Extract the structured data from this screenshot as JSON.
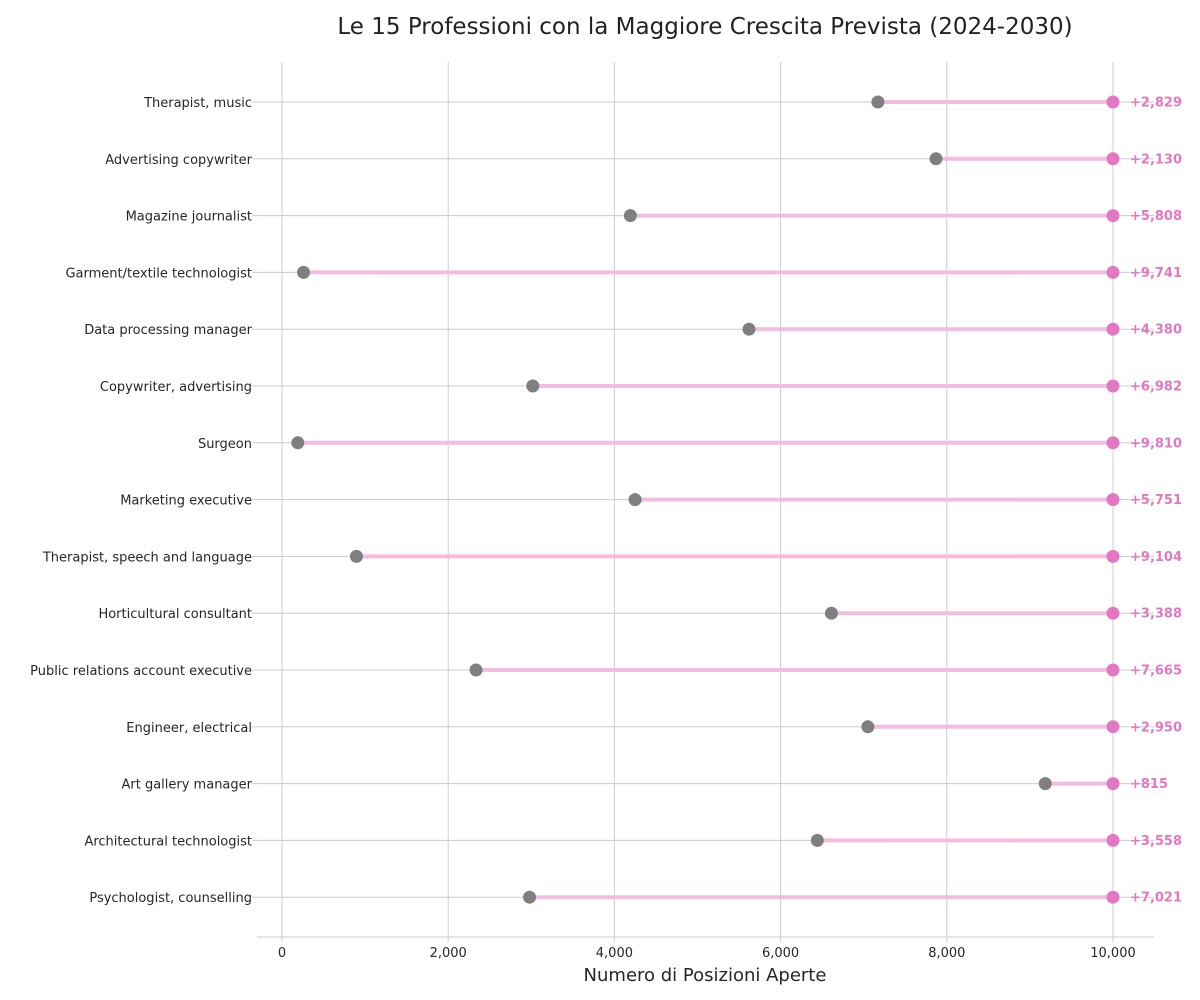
{
  "chart_data": {
    "type": "dumbbell",
    "title": "Le 15 Professioni con la Maggiore Crescita Prevista (2024-2030)",
    "xlabel": "Numero di Posizioni Aperte",
    "ylabel": "",
    "xlim": [
      -300,
      10500
    ],
    "xticks": [
      0,
      2000,
      4000,
      6000,
      8000,
      10000
    ],
    "xtick_labels": [
      "0",
      "2,000",
      "4,000",
      "6,000",
      "8,000",
      "10,000"
    ],
    "grid": "both",
    "legend": "none",
    "colors": {
      "start_point": "#7f7f7f",
      "end_point": "#e377c2",
      "connector": "#f2bde0",
      "growth_label": "#e377c2",
      "grid": "#cccccc",
      "axis": "#cccccc"
    },
    "categories": [
      "Therapist, music",
      "Advertising copywriter",
      "Magazine journalist",
      "Garment/textile technologist",
      "Data processing manager",
      "Copywriter, advertising",
      "Surgeon",
      "Marketing executive",
      "Therapist, speech and language",
      "Horticultural consultant",
      "Public relations account executive",
      "Engineer, electrical",
      "Art gallery manager",
      "Architectural technologist",
      "Psychologist, counselling"
    ],
    "start_values": [
      7171,
      7870,
      4192,
      259,
      5620,
      3018,
      190,
      4249,
      896,
      6612,
      2335,
      7050,
      9185,
      6442,
      2979
    ],
    "end_values": [
      10000,
      10000,
      10000,
      10000,
      10000,
      10000,
      10000,
      10000,
      10000,
      10000,
      10000,
      10000,
      10000,
      10000,
      10000
    ],
    "growth_labels": [
      "+2,829",
      "+2,130",
      "+5,808",
      "+9,741",
      "+4,380",
      "+6,982",
      "+9,810",
      "+5,751",
      "+9,104",
      "+3,388",
      "+7,665",
      "+2,950",
      "+815",
      "+3,558",
      "+7,021"
    ]
  }
}
